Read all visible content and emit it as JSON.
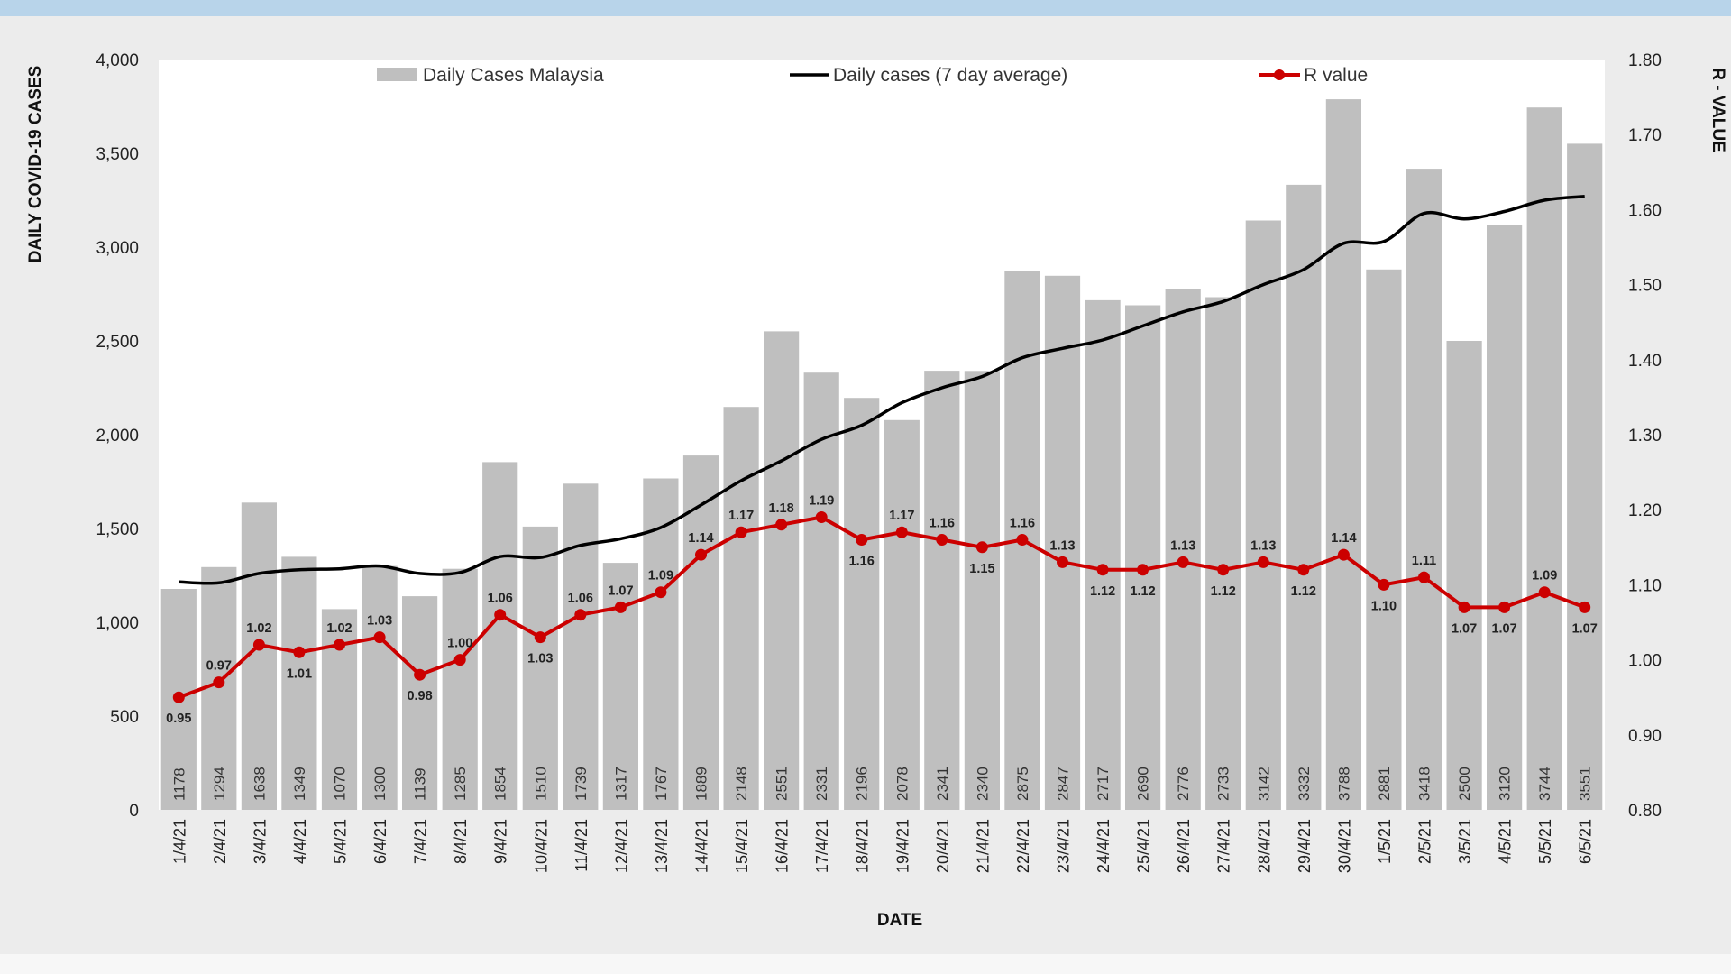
{
  "chart_data": {
    "type": "bar",
    "categories": [
      "1/4/21",
      "2/4/21",
      "3/4/21",
      "4/4/21",
      "5/4/21",
      "6/4/21",
      "7/4/21",
      "8/4/21",
      "9/4/21",
      "10/4/21",
      "11/4/21",
      "12/4/21",
      "13/4/21",
      "14/4/21",
      "15/4/21",
      "16/4/21",
      "17/4/21",
      "18/4/21",
      "19/4/21",
      "20/4/21",
      "21/4/21",
      "22/4/21",
      "23/4/21",
      "24/4/21",
      "25/4/21",
      "26/4/21",
      "27/4/21",
      "28/4/21",
      "29/4/21",
      "30/4/21",
      "1/5/21",
      "2/5/21",
      "3/5/21",
      "4/5/21",
      "5/5/21",
      "6/5/21"
    ],
    "series": [
      {
        "name": "Daily Cases Malaysia",
        "type": "bar",
        "axis": "left",
        "color": "#bfbfbf",
        "values": [
          1178,
          1294,
          1638,
          1349,
          1070,
          1300,
          1139,
          1285,
          1854,
          1510,
          1739,
          1317,
          1767,
          1889,
          2148,
          2551,
          2331,
          2196,
          2078,
          2341,
          2340,
          2875,
          2847,
          2717,
          2690,
          2776,
          2733,
          3142,
          3332,
          3788,
          2881,
          3418,
          2500,
          3120,
          3744,
          3551
        ]
      },
      {
        "name": "Daily cases (7 day average)",
        "type": "line",
        "axis": "left",
        "color": "#000000",
        "values": [
          1215,
          1210,
          1260,
          1280,
          1285,
          1300,
          1260,
          1265,
          1350,
          1345,
          1410,
          1445,
          1505,
          1625,
          1755,
          1860,
          1975,
          2050,
          2170,
          2250,
          2310,
          2410,
          2460,
          2505,
          2580,
          2655,
          2710,
          2800,
          2880,
          3020,
          3030,
          3180,
          3150,
          3190,
          3250,
          3270
        ]
      },
      {
        "name": "R value",
        "type": "line",
        "axis": "right",
        "color": "#cc0000",
        "values": [
          0.95,
          0.97,
          1.02,
          1.01,
          1.02,
          1.03,
          0.98,
          1.0,
          1.06,
          1.03,
          1.06,
          1.07,
          1.09,
          1.14,
          1.17,
          1.18,
          1.19,
          1.16,
          1.17,
          1.16,
          1.15,
          1.16,
          1.13,
          1.12,
          1.12,
          1.13,
          1.12,
          1.13,
          1.12,
          1.14,
          1.1,
          1.11,
          1.07,
          1.07,
          1.09,
          1.07
        ]
      }
    ],
    "xlabel": "DATE",
    "ylabel": "DAILY COVID-19 CASES",
    "y2label": "R - VALUE",
    "ylim": [
      0,
      4000
    ],
    "y2lim": [
      0.8,
      1.8
    ],
    "yticks": [
      "0",
      "500",
      "1,000",
      "1,500",
      "2,000",
      "2,500",
      "3,000",
      "3,500",
      "4,000"
    ],
    "y2ticks": [
      "0.80",
      "0.90",
      "1.00",
      "1.10",
      "1.20",
      "1.30",
      "1.40",
      "1.50",
      "1.60",
      "1.70",
      "1.80"
    ],
    "legend_position": "top",
    "grid": false
  }
}
